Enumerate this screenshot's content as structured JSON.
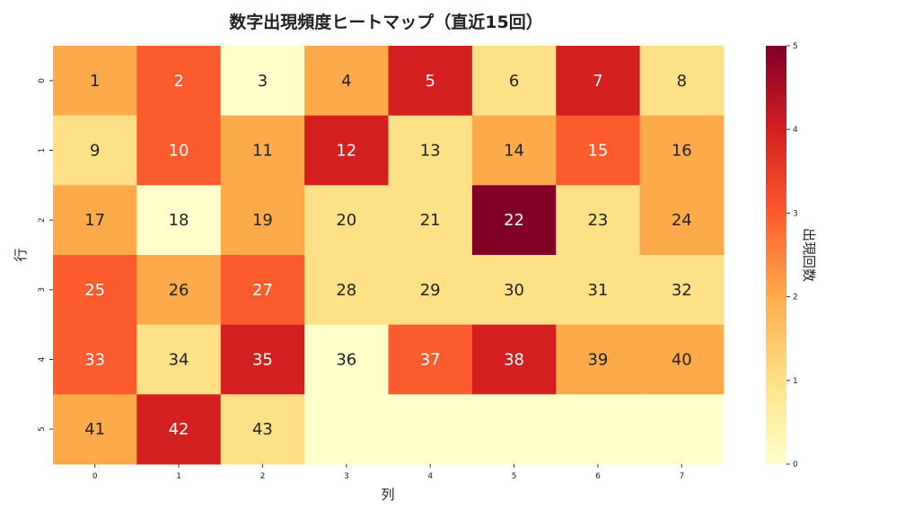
{
  "chart_data": {
    "type": "heatmap",
    "title": "数字出現頻度ヒートマップ（直近15回）",
    "xlabel": "列",
    "ylabel": "行",
    "x_tick_labels": [
      "0",
      "1",
      "2",
      "3",
      "4",
      "5",
      "6",
      "7"
    ],
    "y_tick_labels": [
      "0",
      "1",
      "2",
      "3",
      "4",
      "5"
    ],
    "colormap": "YlOrRd",
    "colorbar": {
      "label": "出現回数",
      "range": [
        0,
        5
      ],
      "ticks": [
        "0",
        "1",
        "2",
        "3",
        "4",
        "5"
      ]
    },
    "annotations": [
      [
        1,
        2,
        3,
        4,
        5,
        6,
        7,
        8
      ],
      [
        9,
        10,
        11,
        12,
        13,
        14,
        15,
        16
      ],
      [
        17,
        18,
        19,
        20,
        21,
        22,
        23,
        24
      ],
      [
        25,
        26,
        27,
        28,
        29,
        30,
        31,
        32
      ],
      [
        33,
        34,
        35,
        36,
        37,
        38,
        39,
        40
      ],
      [
        41,
        42,
        43,
        null,
        null,
        null,
        null,
        null
      ]
    ],
    "values": [
      [
        2,
        3,
        0,
        2,
        4,
        1,
        4,
        1
      ],
      [
        1,
        3,
        2,
        4,
        1,
        2,
        3,
        2
      ],
      [
        2,
        0,
        2,
        1,
        1,
        5,
        1,
        2
      ],
      [
        3,
        2,
        3,
        1,
        1,
        1,
        1,
        1
      ],
      [
        3,
        1,
        4,
        0,
        3,
        4,
        2,
        2
      ],
      [
        2,
        4,
        1,
        0,
        0,
        0,
        0,
        0
      ]
    ],
    "color_stops": [
      "#ffffcc",
      "#fee187",
      "#fdab4a",
      "#fc5b2e",
      "#d41f20",
      "#800026"
    ]
  }
}
